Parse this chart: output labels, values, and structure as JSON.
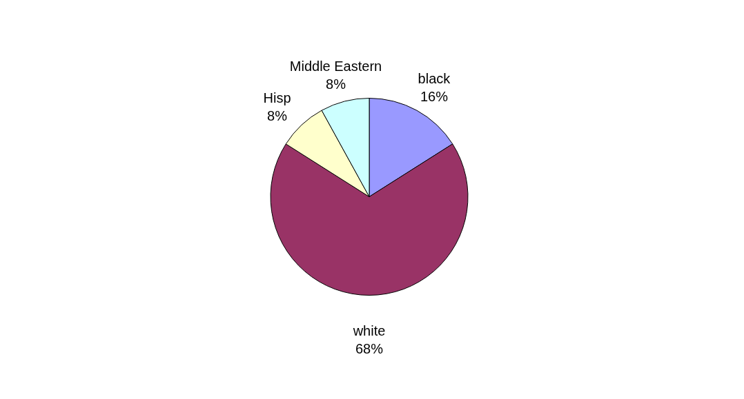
{
  "chart_data": {
    "type": "pie",
    "categories": [
      "black",
      "white",
      "Hisp",
      "Middle Eastern"
    ],
    "values": [
      16,
      68,
      8,
      8
    ],
    "colors": [
      "#9999ff",
      "#993366",
      "#ffffcc",
      "#ccffff"
    ],
    "value_labels": [
      "16%",
      "68%",
      "8%",
      "8%"
    ]
  }
}
